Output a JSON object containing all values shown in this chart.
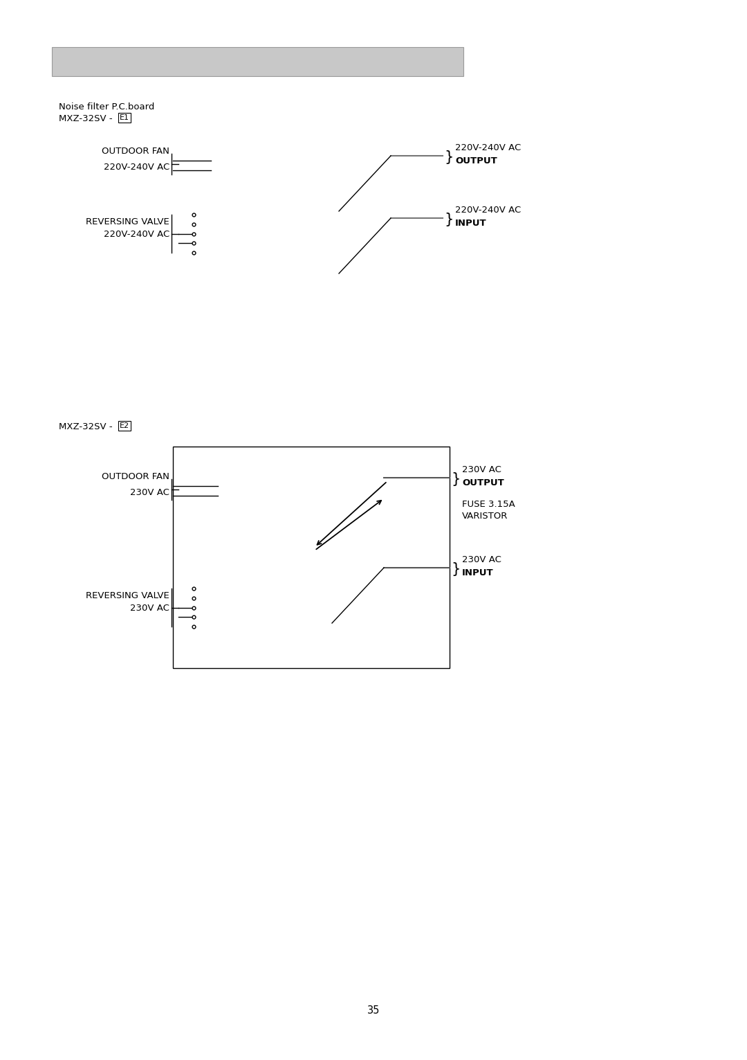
{
  "bg_color": "#ffffff",
  "header_bar_color": "#c8c8c8",
  "page_number": "35",
  "section1": {
    "title_line1": "Noise filter P.C.board",
    "title_line2_prefix": "MXZ-32SV - ",
    "title_line2_boxed": "E1",
    "outdoor_fan_label": "OUTDOOR FAN",
    "outdoor_fan_voltage": "220V-240V AC",
    "output_voltage": "220V-240V AC",
    "output_word": "OUTPUT",
    "input_voltage": "220V-240V AC",
    "input_word": "INPUT",
    "reversing_valve_label": "REVERSING VALVE",
    "reversing_valve_voltage": "220V-240V AC"
  },
  "section2": {
    "title_prefix": "MXZ-32SV - ",
    "title_boxed": "E2",
    "outdoor_fan_label": "OUTDOOR FAN",
    "outdoor_fan_voltage": "230V AC",
    "output_voltage": "230V AC",
    "output_word": "OUTPUT",
    "fuse_line1": "FUSE 3.15A",
    "fuse_line2": "VARISTOR",
    "input_voltage": "230V AC",
    "input_word": "INPUT",
    "reversing_valve_label": "REVERSING VALVE",
    "reversing_valve_voltage": "230V AC"
  }
}
